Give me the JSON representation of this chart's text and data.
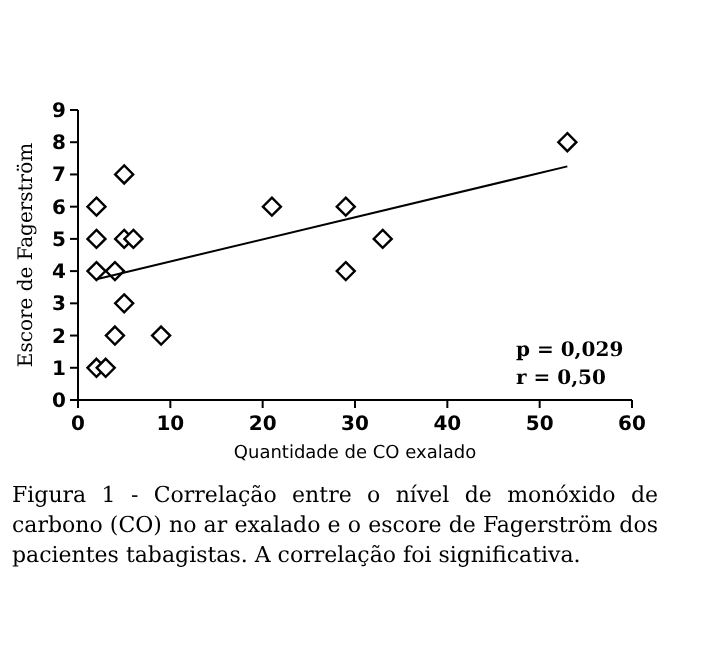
{
  "chart_data": {
    "type": "scatter",
    "xlabel": "Quantidade de CO exalado",
    "ylabel": "Escore de Fagerström",
    "xlim": [
      0,
      60
    ],
    "xticks": [
      0,
      10,
      20,
      30,
      40,
      50,
      60
    ],
    "ylim": [
      0,
      9
    ],
    "yticks": [
      0,
      1,
      2,
      3,
      4,
      5,
      6,
      7,
      8,
      9
    ],
    "grid": false,
    "series": [
      {
        "marker": "diamond",
        "color": "#000000",
        "x": [
          2,
          2,
          2,
          2,
          3,
          4,
          4,
          5,
          5,
          6,
          5,
          9,
          21,
          29,
          29,
          33,
          53
        ],
        "values": [
          6,
          5,
          4,
          1,
          1,
          4,
          2,
          7,
          5,
          5,
          3,
          2,
          6,
          6,
          4,
          5,
          8
        ]
      },
      {
        "type": "line",
        "color": "#000000",
        "x": [
          2,
          53
        ],
        "values": [
          3.75,
          7.25
        ]
      }
    ],
    "annotations": [
      "p = 0,029",
      "r = 0,50",
      "Figura 1 - Correlação entre o nível de monóxido de carbono (CO) no ar exalado e o escore de Fagerström dos pacientes tabagistas. A correlação foi significativa."
    ]
  }
}
